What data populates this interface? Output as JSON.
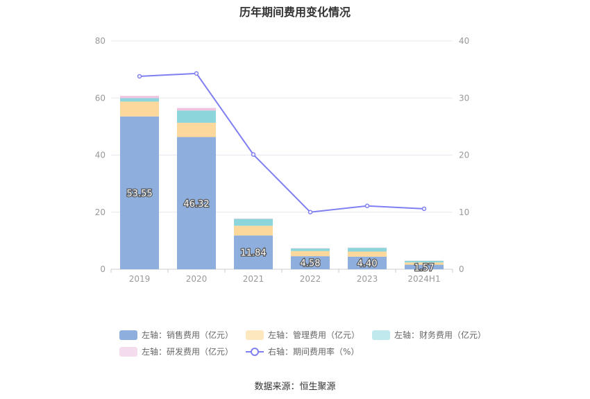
{
  "chart_data": {
    "type": "bar",
    "title": "历年期间费用变化情况",
    "categories": [
      "2019",
      "2020",
      "2021",
      "2022",
      "2023",
      "2024H1"
    ],
    "stacked": true,
    "y_left": {
      "min": 0,
      "max": 80,
      "ticks": [
        0,
        20,
        40,
        60,
        80
      ]
    },
    "y_right": {
      "min": 0,
      "max": 40,
      "ticks": [
        0,
        10,
        20,
        30,
        40
      ]
    },
    "grid": true,
    "legend_position": "bottom",
    "series": [
      {
        "name": "左轴：销售费用（亿元）",
        "axis": "left",
        "color": "#8eaedd",
        "values": [
          53.55,
          46.32,
          11.84,
          4.58,
          4.4,
          1.57
        ],
        "labels": [
          "53.55",
          "46.32",
          "11.84",
          "4.58",
          "4.40",
          "1.57"
        ]
      },
      {
        "name": "左轴：管理费用（亿元）",
        "axis": "left",
        "color": "#fdd89c",
        "values": [
          5.2,
          5.0,
          3.4,
          1.8,
          1.8,
          0.8
        ]
      },
      {
        "name": "左轴：财务费用（亿元）",
        "axis": "left",
        "color": "#8cd6db",
        "values": [
          1.2,
          4.3,
          2.4,
          0.9,
          1.3,
          0.6
        ]
      },
      {
        "name": "左轴：研发费用（亿元）",
        "axis": "left",
        "color": "#f0c4e0",
        "values": [
          0.8,
          0.9,
          0.1,
          0.1,
          0.1,
          0.05
        ]
      },
      {
        "name": "右轴：期间费用率（%）",
        "axis": "right",
        "type": "line",
        "color": "#7f7ff2",
        "values": [
          33.8,
          34.3,
          20.1,
          10.0,
          11.1,
          10.6
        ]
      }
    ]
  },
  "source": "数据来源：恒生聚源"
}
